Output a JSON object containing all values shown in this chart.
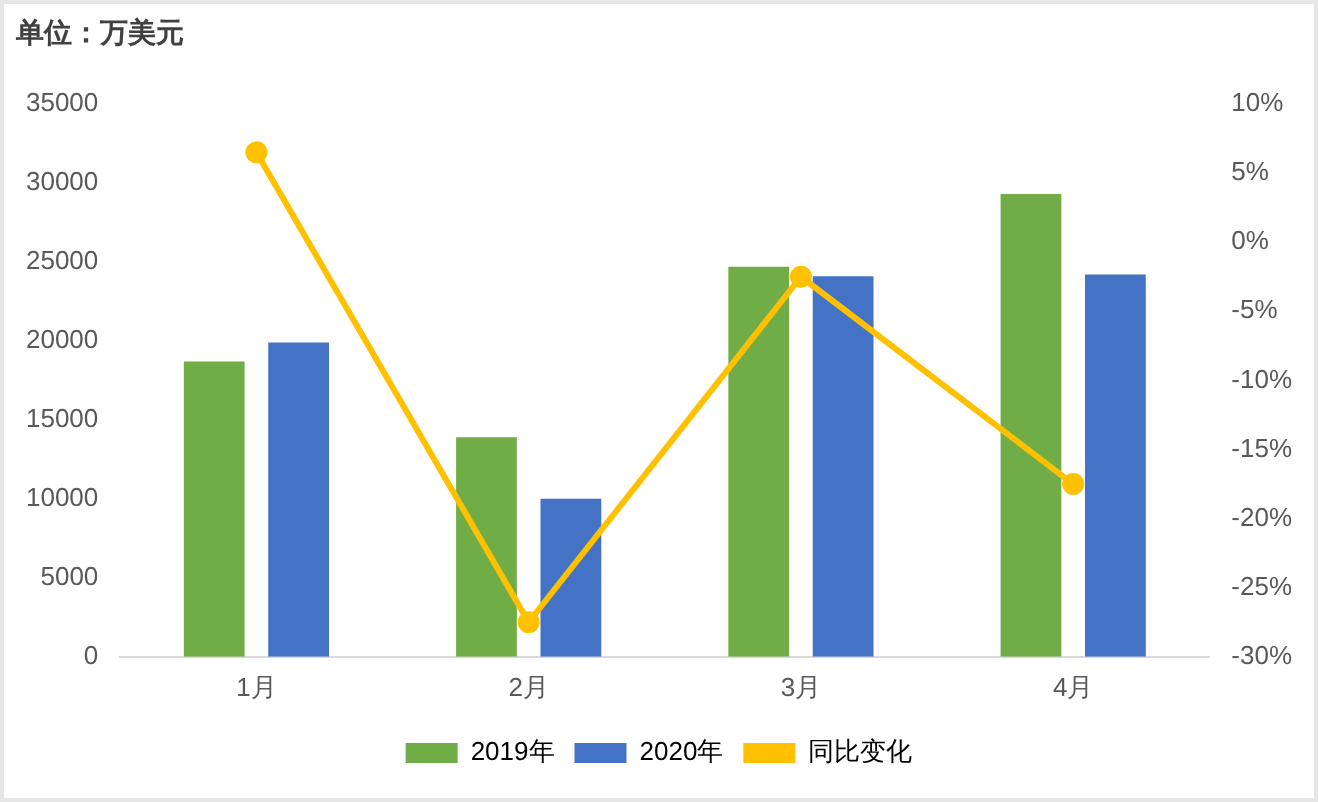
{
  "chart_data": {
    "type": "bar",
    "ylabel": "单位：万美元",
    "categories": [
      "1月",
      "2月",
      "3月",
      "4月"
    ],
    "series": [
      {
        "name": "2019年",
        "color": "#70ad47",
        "values": [
          18700,
          13900,
          24700,
          29300
        ]
      },
      {
        "name": "2020年",
        "color": "#4472c4",
        "values": [
          19900,
          10000,
          24100,
          24200
        ]
      },
      {
        "name": "同比变化",
        "type": "line",
        "axis": "y2",
        "color": "#ffc000",
        "values": [
          6.5,
          -27.5,
          -2.5,
          -17.5
        ]
      }
    ],
    "ylim": [
      0,
      35000
    ],
    "yticks": [
      0,
      5000,
      10000,
      15000,
      20000,
      25000,
      30000,
      35000
    ],
    "y2lim": [
      -30,
      10
    ],
    "y2ticks": [
      {
        "value": -30,
        "label": "-30%"
      },
      {
        "value": -25,
        "label": "-25%"
      },
      {
        "value": -20,
        "label": "-20%"
      },
      {
        "value": -15,
        "label": "-15%"
      },
      {
        "value": -10,
        "label": "-10%"
      },
      {
        "value": -5,
        "label": "-5%"
      },
      {
        "value": 0,
        "label": "0%"
      },
      {
        "value": 5,
        "label": "5%"
      },
      {
        "value": 10,
        "label": "10%"
      }
    ],
    "grid": false,
    "legend": "bottom",
    "marker": "circle",
    "line_style": "solid"
  }
}
